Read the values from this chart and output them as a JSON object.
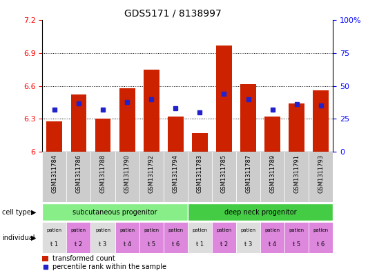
{
  "title": "GDS5171 / 8138997",
  "samples": [
    "GSM1311784",
    "GSM1311786",
    "GSM1311788",
    "GSM1311790",
    "GSM1311792",
    "GSM1311794",
    "GSM1311783",
    "GSM1311785",
    "GSM1311787",
    "GSM1311789",
    "GSM1311791",
    "GSM1311793"
  ],
  "red_values": [
    6.28,
    6.52,
    6.3,
    6.58,
    6.75,
    6.32,
    6.17,
    6.97,
    6.62,
    6.32,
    6.44,
    6.56
  ],
  "blue_values_pct": [
    32,
    37,
    32,
    38,
    40,
    33,
    30,
    44,
    40,
    32,
    36,
    35
  ],
  "ylim_left": [
    6.0,
    7.2
  ],
  "ylim_right": [
    0,
    100
  ],
  "yticks_left": [
    6.0,
    6.3,
    6.6,
    6.9,
    7.2
  ],
  "yticks_right": [
    0,
    25,
    50,
    75,
    100
  ],
  "ytick_labels_right": [
    "0",
    "25",
    "50",
    "75",
    "100%"
  ],
  "grid_values": [
    6.3,
    6.6,
    6.9
  ],
  "bar_color": "#cc2200",
  "blue_color": "#2222cc",
  "cell_type_groups": [
    {
      "label": "subcutaneous progenitor",
      "start": 0,
      "end": 6,
      "color": "#88ee88"
    },
    {
      "label": "deep neck progenitor",
      "start": 6,
      "end": 12,
      "color": "#44cc44"
    }
  ],
  "ind_colors": [
    "#dddddd",
    "#dd88dd",
    "#dddddd",
    "#dd88dd",
    "#dd88dd",
    "#dd88dd",
    "#dddddd",
    "#dd88dd",
    "#dddddd",
    "#dd88dd",
    "#dd88dd",
    "#dd88dd"
  ],
  "short_labels": [
    "t 1",
    "t 2",
    "t 3",
    "t 4",
    "t 5",
    "t 6",
    "t 1",
    "t 2",
    "t 3",
    "t 4",
    "t 5",
    "t 6"
  ],
  "row_label_cell_type": "cell type",
  "row_label_individual": "individual",
  "legend_red": "transformed count",
  "legend_blue": "percentile rank within the sample",
  "bar_bottom": 6.0,
  "bar_width": 0.65,
  "xtick_bg": "#cccccc"
}
